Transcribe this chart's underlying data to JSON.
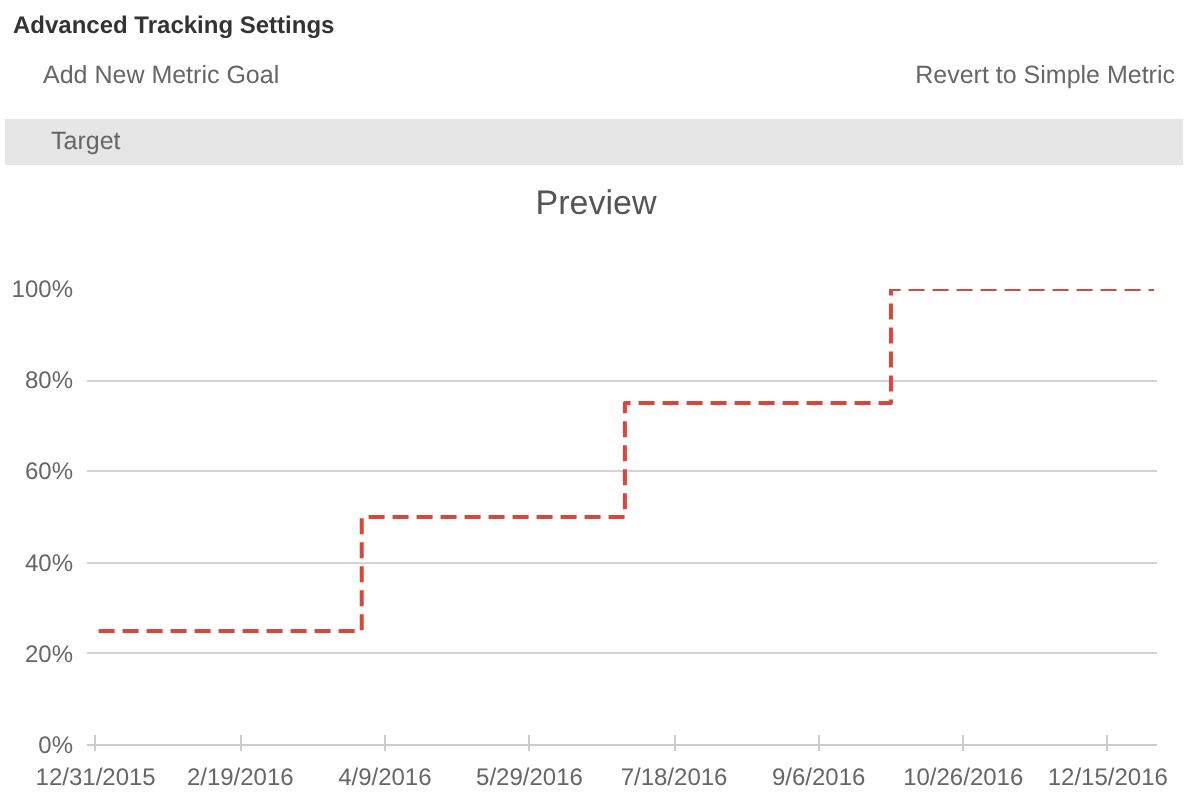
{
  "chart_data": {
    "type": "step",
    "title": "Preview",
    "annotations": [
      "Advanced Tracking Settings",
      "Add New Metric Goal",
      "Revert to Simple Metric",
      "Target"
    ],
    "x": [
      "2016-01-01",
      "2016-04-01",
      "2016-07-01",
      "2016-10-01",
      "2016-12-31"
    ],
    "series": [
      {
        "color": "#d9463a",
        "values": [
          25,
          50,
          75,
          100,
          100
        ]
      }
    ],
    "xlim": [
      "2015-12-28",
      "2017-01-01"
    ],
    "xticks": [
      {
        "value": "2015-12-31",
        "label": "12/31/2015"
      },
      {
        "value": "2016-02-19",
        "label": "2/19/2016"
      },
      {
        "value": "2016-04-09",
        "label": "4/9/2016"
      },
      {
        "value": "2016-05-29",
        "label": "5/29/2016"
      },
      {
        "value": "2016-07-18",
        "label": "7/18/2016"
      },
      {
        "value": "2016-09-06",
        "label": "9/6/2016"
      },
      {
        "value": "2016-10-26",
        "label": "10/26/2016"
      },
      {
        "value": "2016-12-15",
        "label": "12/15/2016"
      }
    ],
    "ylim": [
      0,
      100
    ],
    "yticks": [
      {
        "value": 0,
        "label": "0%"
      },
      {
        "value": 20,
        "label": "20%"
      },
      {
        "value": 40,
        "label": "40%"
      },
      {
        "value": 60,
        "label": "60%"
      },
      {
        "value": 80,
        "label": "80%"
      },
      {
        "value": 100,
        "label": "100%"
      }
    ],
    "grid": "y",
    "line_style": "dashed"
  }
}
